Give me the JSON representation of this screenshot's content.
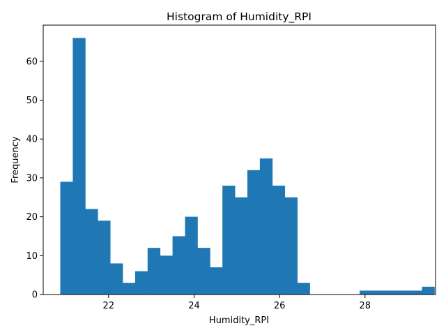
{
  "chart_data": {
    "type": "bar",
    "subtype": "histogram",
    "title": "Histogram of Humidity_RPI",
    "xlabel": "Humidity_RPI",
    "ylabel": "Frequency",
    "xlim": [
      20.47,
      29.65
    ],
    "ylim": [
      0,
      69.3
    ],
    "xticks": [
      22,
      24,
      26,
      28
    ],
    "yticks": [
      0,
      10,
      20,
      30,
      40,
      50,
      60
    ],
    "grid": false,
    "bar_color": "#1f77b4",
    "bin_start": 20.87,
    "bin_width": 0.2918,
    "counts": [
      29,
      66,
      22,
      19,
      8,
      3,
      6,
      12,
      10,
      15,
      20,
      12,
      7,
      28,
      25,
      32,
      35,
      28,
      25,
      3,
      0,
      0,
      0,
      0,
      1,
      1,
      1,
      1,
      1,
      2
    ]
  }
}
